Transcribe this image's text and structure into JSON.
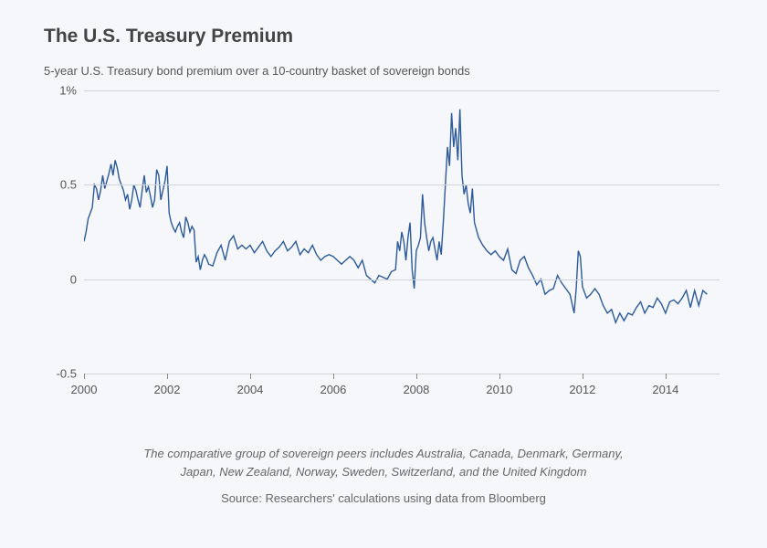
{
  "chart": {
    "type": "line",
    "title": "The U.S. Treasury Premium",
    "subtitle": "5-year U.S. Treasury bond premium over a 10-country basket of sovereign bonds",
    "title_fontsize": 21,
    "title_color": "#444444",
    "subtitle_fontsize": 13,
    "subtitle_color": "#555555",
    "background_color": "#f5f7fa",
    "line_color": "#2d5a9a",
    "line_width": 1.4,
    "grid_color": "#d0d4db",
    "axis_label_color": "#555555",
    "axis_label_fontsize": 13,
    "ylim": [
      -0.5,
      1.0
    ],
    "yticks": [
      -0.5,
      0,
      0.5,
      1.0
    ],
    "ytick_labels": [
      "-0.5",
      "0",
      "0.5",
      "1%"
    ],
    "xlim": [
      2000,
      2015.3
    ],
    "xticks": [
      2000,
      2002,
      2004,
      2006,
      2008,
      2010,
      2012,
      2014
    ],
    "xtick_labels": [
      "2000",
      "2002",
      "2004",
      "2006",
      "2008",
      "2010",
      "2012",
      "2014"
    ],
    "series": {
      "x": [
        2000.0,
        2000.05,
        2000.1,
        2000.15,
        2000.2,
        2000.25,
        2000.3,
        2000.35,
        2000.4,
        2000.45,
        2000.5,
        2000.55,
        2000.6,
        2000.65,
        2000.7,
        2000.75,
        2000.8,
        2000.85,
        2000.9,
        2000.95,
        2001.0,
        2001.05,
        2001.1,
        2001.15,
        2001.2,
        2001.25,
        2001.3,
        2001.35,
        2001.4,
        2001.45,
        2001.5,
        2001.55,
        2001.6,
        2001.65,
        2001.7,
        2001.75,
        2001.8,
        2001.85,
        2001.9,
        2001.95,
        2002.0,
        2002.05,
        2002.1,
        2002.15,
        2002.2,
        2002.25,
        2002.3,
        2002.35,
        2002.4,
        2002.45,
        2002.5,
        2002.55,
        2002.6,
        2002.65,
        2002.7,
        2002.75,
        2002.8,
        2002.85,
        2002.9,
        2002.95,
        2003.0,
        2003.1,
        2003.2,
        2003.3,
        2003.4,
        2003.5,
        2003.6,
        2003.7,
        2003.8,
        2003.9,
        2004.0,
        2004.1,
        2004.2,
        2004.3,
        2004.4,
        2004.5,
        2004.6,
        2004.7,
        2004.8,
        2004.9,
        2005.0,
        2005.1,
        2005.2,
        2005.3,
        2005.4,
        2005.5,
        2005.6,
        2005.7,
        2005.8,
        2005.9,
        2006.0,
        2006.1,
        2006.2,
        2006.3,
        2006.4,
        2006.5,
        2006.6,
        2006.7,
        2006.8,
        2006.9,
        2007.0,
        2007.1,
        2007.2,
        2007.3,
        2007.4,
        2007.5,
        2007.55,
        2007.6,
        2007.65,
        2007.7,
        2007.75,
        2007.8,
        2007.85,
        2007.9,
        2007.95,
        2008.0,
        2008.05,
        2008.1,
        2008.15,
        2008.2,
        2008.25,
        2008.3,
        2008.35,
        2008.4,
        2008.45,
        2008.5,
        2008.55,
        2008.6,
        2008.65,
        2008.7,
        2008.75,
        2008.8,
        2008.85,
        2008.9,
        2008.95,
        2009.0,
        2009.05,
        2009.1,
        2009.15,
        2009.2,
        2009.25,
        2009.3,
        2009.35,
        2009.4,
        2009.5,
        2009.6,
        2009.7,
        2009.8,
        2009.9,
        2010.0,
        2010.1,
        2010.2,
        2010.3,
        2010.4,
        2010.5,
        2010.6,
        2010.7,
        2010.8,
        2010.9,
        2011.0,
        2011.1,
        2011.2,
        2011.3,
        2011.4,
        2011.5,
        2011.6,
        2011.7,
        2011.8,
        2011.85,
        2011.9,
        2011.95,
        2012.0,
        2012.1,
        2012.2,
        2012.3,
        2012.4,
        2012.5,
        2012.6,
        2012.7,
        2012.8,
        2012.9,
        2013.0,
        2013.1,
        2013.2,
        2013.3,
        2013.4,
        2013.5,
        2013.6,
        2013.7,
        2013.8,
        2013.9,
        2014.0,
        2014.1,
        2014.2,
        2014.3,
        2014.4,
        2014.5,
        2014.6,
        2014.7,
        2014.8,
        2014.9,
        2015.0
      ],
      "y": [
        0.2,
        0.25,
        0.32,
        0.35,
        0.38,
        0.5,
        0.48,
        0.42,
        0.47,
        0.55,
        0.48,
        0.52,
        0.56,
        0.61,
        0.55,
        0.63,
        0.59,
        0.53,
        0.5,
        0.47,
        0.42,
        0.45,
        0.37,
        0.42,
        0.5,
        0.47,
        0.42,
        0.38,
        0.47,
        0.55,
        0.46,
        0.49,
        0.44,
        0.38,
        0.42,
        0.58,
        0.55,
        0.42,
        0.47,
        0.52,
        0.6,
        0.35,
        0.3,
        0.27,
        0.25,
        0.28,
        0.3,
        0.25,
        0.22,
        0.33,
        0.3,
        0.25,
        0.28,
        0.26,
        0.09,
        0.12,
        0.05,
        0.1,
        0.13,
        0.11,
        0.08,
        0.07,
        0.14,
        0.18,
        0.1,
        0.2,
        0.23,
        0.16,
        0.18,
        0.16,
        0.18,
        0.14,
        0.17,
        0.2,
        0.15,
        0.12,
        0.15,
        0.17,
        0.2,
        0.15,
        0.17,
        0.2,
        0.13,
        0.16,
        0.14,
        0.18,
        0.13,
        0.1,
        0.12,
        0.13,
        0.12,
        0.1,
        0.08,
        0.1,
        0.12,
        0.1,
        0.06,
        0.1,
        0.02,
        0.0,
        -0.02,
        0.02,
        0.01,
        0.0,
        0.04,
        0.05,
        0.2,
        0.15,
        0.25,
        0.2,
        0.1,
        0.22,
        0.3,
        0.05,
        -0.05,
        0.15,
        0.18,
        0.22,
        0.45,
        0.3,
        0.22,
        0.15,
        0.2,
        0.22,
        0.16,
        0.1,
        0.2,
        0.13,
        0.3,
        0.5,
        0.7,
        0.6,
        0.88,
        0.7,
        0.8,
        0.63,
        0.9,
        0.55,
        0.45,
        0.5,
        0.4,
        0.35,
        0.48,
        0.3,
        0.22,
        0.18,
        0.15,
        0.13,
        0.15,
        0.12,
        0.1,
        0.16,
        0.05,
        0.03,
        0.1,
        0.12,
        0.06,
        0.02,
        -0.03,
        0.0,
        -0.08,
        -0.06,
        -0.05,
        0.02,
        -0.02,
        -0.05,
        -0.08,
        -0.18,
        -0.05,
        0.15,
        0.12,
        -0.04,
        -0.1,
        -0.08,
        -0.05,
        -0.08,
        -0.14,
        -0.18,
        -0.16,
        -0.23,
        -0.18,
        -0.22,
        -0.18,
        -0.19,
        -0.15,
        -0.12,
        -0.18,
        -0.14,
        -0.15,
        -0.1,
        -0.13,
        -0.18,
        -0.12,
        -0.11,
        -0.13,
        -0.1,
        -0.06,
        -0.15,
        -0.06,
        -0.14,
        -0.06,
        -0.08
      ]
    },
    "footer_note_line1": "The comparative group of sovereign peers includes Australia, Canada, Denmark, Germany,",
    "footer_note_line2": "Japan, New Zealand, Norway, Sweden, Switzerland, and the United Kingdom",
    "footer_source": "Source: Researchers' calculations using data from Bloomberg",
    "footer_fontsize": 13,
    "footer_color": "#666666"
  }
}
